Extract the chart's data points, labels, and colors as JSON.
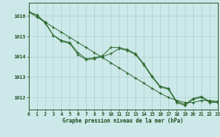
{
  "hours": [
    0,
    1,
    2,
    3,
    4,
    5,
    6,
    7,
    8,
    9,
    10,
    11,
    12,
    13,
    14,
    15,
    16,
    17,
    18,
    19,
    20,
    21,
    22,
    23
  ],
  "y_straight": [
    1016.2,
    1015.95,
    1015.7,
    1015.45,
    1015.2,
    1014.95,
    1014.7,
    1014.45,
    1014.2,
    1013.95,
    1013.7,
    1013.45,
    1013.2,
    1012.95,
    1012.7,
    1012.45,
    1012.2,
    1012.0,
    1011.85,
    1011.75,
    1011.75,
    1011.85,
    1011.85,
    1011.8
  ],
  "y_mid": [
    1016.2,
    1016.05,
    1015.7,
    1015.05,
    1014.8,
    1014.7,
    1014.2,
    1013.9,
    1013.95,
    1014.05,
    1014.45,
    1014.45,
    1014.35,
    1014.15,
    1013.65,
    1013.05,
    1012.55,
    1012.45,
    1011.8,
    1011.65,
    1011.95,
    1012.05,
    1011.8,
    1011.8
  ],
  "y_bot": [
    1016.2,
    1016.05,
    1015.65,
    1015.05,
    1014.75,
    1014.65,
    1014.1,
    1013.85,
    1013.9,
    1014.0,
    1014.15,
    1014.4,
    1014.3,
    1014.1,
    1013.6,
    1013.0,
    1012.5,
    1012.4,
    1011.75,
    1011.6,
    1011.9,
    1012.0,
    1011.75,
    1011.75
  ],
  "line_color": "#2d6a2d",
  "bg_color": "#cce8e8",
  "grid_color": "#aacccc",
  "xlabel": "Graphe pression niveau de la mer (hPa)",
  "ylim_min": 1011.4,
  "ylim_max": 1016.65,
  "yticks": [
    1012,
    1013,
    1014,
    1015,
    1016
  ],
  "text_color": "#1a4a1a"
}
